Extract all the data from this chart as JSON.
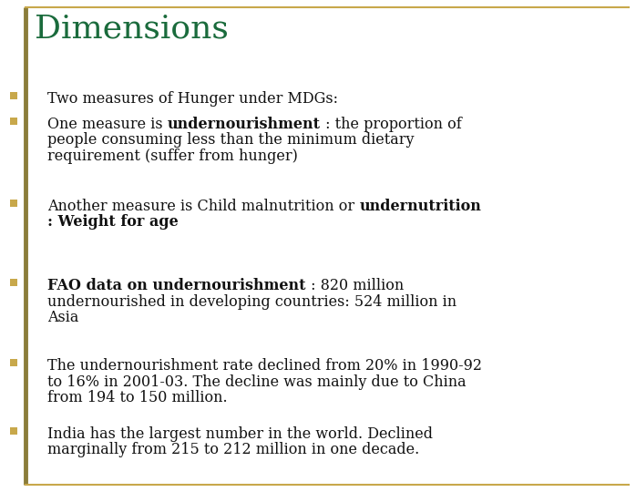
{
  "title": "Dimensions",
  "title_color": "#1a6b3c",
  "title_fontsize": 26,
  "left_border_color": "#8B7D3A",
  "horiz_border_color": "#c8a84b",
  "bullet_color": "#c8a84b",
  "text_color": "#111111",
  "bg_color": "#ffffff",
  "font_family": "serif",
  "fontsize": 11.5,
  "fig_width": 6.98,
  "fig_height": 5.4,
  "fig_dpi": 100,
  "bullet_segments": [
    [
      [
        "Two measures of Hunger under MDGs:",
        "normal"
      ]
    ],
    [
      [
        "One measure is ",
        "normal"
      ],
      [
        "undernourishment",
        "bold"
      ],
      [
        " : the proportion of\npeople consuming less than the minimum dietary\nrequirement (suffer from hunger)",
        "normal"
      ]
    ],
    [
      [
        "Another measure is Child malnutrition or ",
        "normal"
      ],
      [
        "undernutrition\n: Weight for age",
        "bold"
      ]
    ],
    [
      [
        "FAO data on undernourishment",
        "bold"
      ],
      [
        " : 820 million\nundernourished in developing countries: 524 million in\nAsia",
        "normal"
      ]
    ],
    [
      [
        "The undernourishment rate declined from 20% in 1990-92\nto 16% in 2001-03. The decline was mainly due to China\nfrom 194 to 150 million.",
        "normal"
      ]
    ],
    [
      [
        "India has the largest number in the world. Declined\nmarginally from 215 to 212 million in one decade.",
        "normal"
      ]
    ]
  ]
}
